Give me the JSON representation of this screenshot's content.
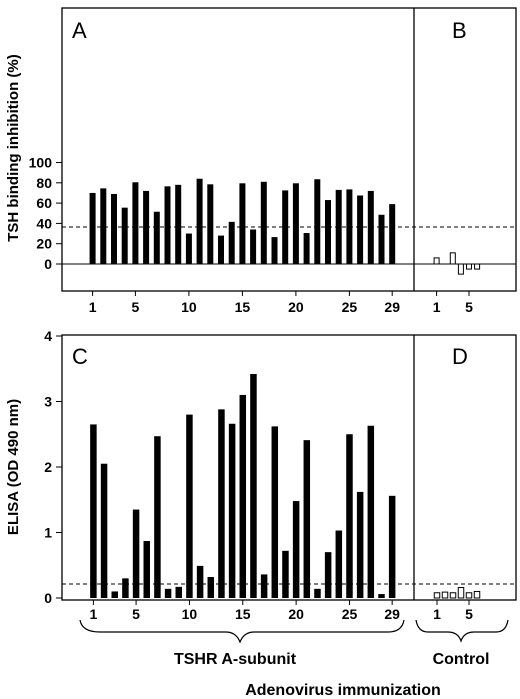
{
  "chart_data": [
    {
      "type": "bar",
      "panel": "A",
      "ylabel": "TSH binding inhibition (%)",
      "ylim": [
        -15,
        100
      ],
      "yticks": [
        0,
        20,
        40,
        60,
        80,
        100
      ],
      "xtick_labels": [
        "1",
        "5",
        "10",
        "15",
        "20",
        "25",
        "29"
      ],
      "xtick_positions": [
        1,
        5,
        10,
        15,
        20,
        25,
        29
      ],
      "x": [
        1,
        2,
        3,
        4,
        5,
        6,
        7,
        8,
        9,
        10,
        11,
        12,
        13,
        14,
        15,
        16,
        17,
        18,
        19,
        20,
        21,
        22,
        23,
        24,
        25,
        26,
        27,
        28,
        29
      ],
      "values": [
        70,
        74.5,
        69,
        55.5,
        80.5,
        72,
        51.5,
        76.5,
        78,
        30,
        84,
        78.5,
        28,
        41.5,
        79.5,
        34,
        81,
        26.5,
        72.5,
        79.5,
        30.5,
        83.5,
        63,
        73,
        73.5,
        67.5,
        72,
        48.5,
        59
      ],
      "threshold": 15,
      "fill": "#000000"
    },
    {
      "type": "bar",
      "panel": "B",
      "ylim": [
        -15,
        100
      ],
      "xtick_labels": [
        "1",
        "5"
      ],
      "xtick_positions": [
        1,
        5
      ],
      "x": [
        1,
        2,
        3,
        4,
        5,
        6
      ],
      "values": [
        6,
        0,
        11,
        -10,
        -5,
        -5
      ],
      "threshold": 15,
      "fill": "#ffffff"
    },
    {
      "type": "bar",
      "panel": "C",
      "ylabel": "ELISA (OD 490 nm)",
      "ylim": [
        0,
        4
      ],
      "yticks": [
        0,
        1,
        2,
        3,
        4
      ],
      "xtick_labels": [
        "1",
        "5",
        "10",
        "15",
        "20",
        "25",
        "29"
      ],
      "xtick_positions": [
        1,
        5,
        10,
        15,
        20,
        25,
        29
      ],
      "x": [
        1,
        2,
        3,
        4,
        5,
        6,
        7,
        8,
        9,
        10,
        11,
        12,
        13,
        14,
        15,
        16,
        17,
        18,
        19,
        20,
        21,
        22,
        23,
        24,
        25,
        26,
        27,
        28,
        29
      ],
      "values": [
        2.65,
        2.05,
        0.1,
        0.3,
        1.35,
        0.87,
        2.47,
        0.14,
        0.17,
        2.8,
        0.49,
        0.32,
        2.88,
        2.66,
        3.1,
        3.42,
        0.36,
        2.62,
        0.72,
        1.48,
        2.41,
        0.14,
        0.7,
        1.03,
        2.5,
        1.62,
        2.63,
        0.06,
        1.56
      ],
      "threshold": 0.2,
      "fill": "#000000"
    },
    {
      "type": "bar",
      "panel": "D",
      "ylim": [
        0,
        4
      ],
      "xtick_labels": [
        "1",
        "5"
      ],
      "xtick_positions": [
        1,
        5
      ],
      "x": [
        1,
        2,
        3,
        4,
        5,
        6
      ],
      "values": [
        0.08,
        0.09,
        0.08,
        0.16,
        0.08,
        0.1
      ],
      "threshold": 0.2,
      "fill": "#ffffff"
    }
  ],
  "group_labels": {
    "left": "TSHR A-subunit",
    "right": "Control"
  },
  "footer": "Adenovirus immunization"
}
